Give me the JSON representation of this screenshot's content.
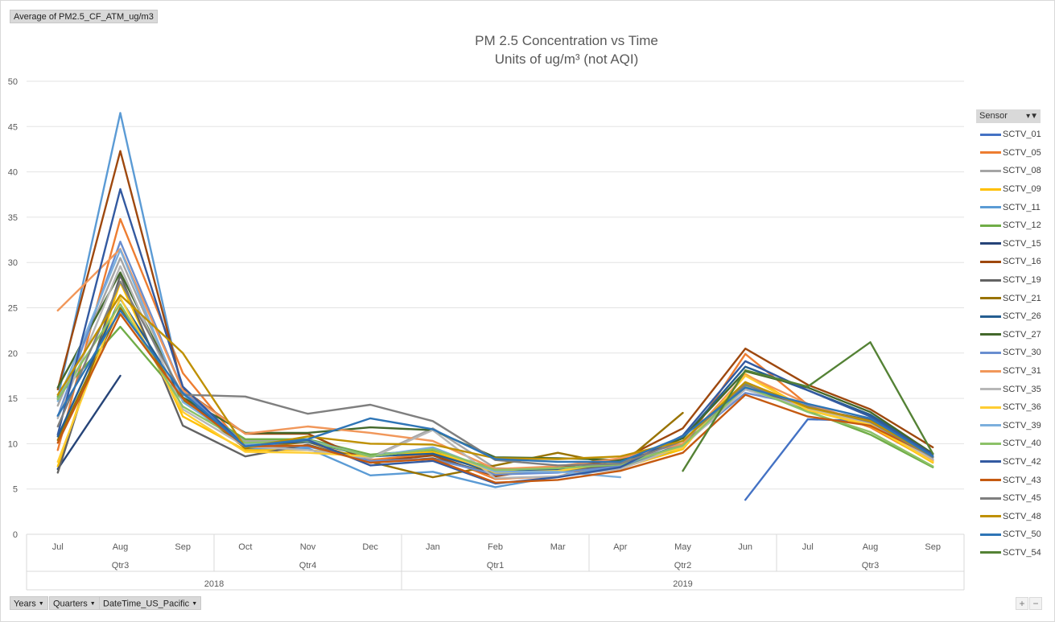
{
  "value_field": "Average of PM2.5_CF_ATM_ug/m3",
  "legend_title": "Sensor",
  "axis_fields": [
    {
      "label": "Years"
    },
    {
      "label": "Quarters"
    },
    {
      "label": "DateTime_US_Pacific"
    }
  ],
  "zoom": {
    "plus": "+",
    "minus": "−"
  },
  "chart_data": {
    "type": "line",
    "title": "PM 2.5 Concentration vs Time",
    "subtitle": "Units of ug/m³ (not AQI)",
    "xlabel": "",
    "ylabel": "",
    "ylim": [
      0,
      50
    ],
    "yticks": [
      0,
      5,
      10,
      15,
      20,
      25,
      30,
      35,
      40,
      45,
      50
    ],
    "grid": true,
    "legend_position": "right",
    "categories": [
      "Jul",
      "Aug",
      "Sep",
      "Oct",
      "Nov",
      "Dec",
      "Jan",
      "Feb",
      "Mar",
      "Apr",
      "May",
      "Jun",
      "Jul",
      "Aug",
      "Sep"
    ],
    "quarter_groups": [
      {
        "label": "Qtr3",
        "count": 3
      },
      {
        "label": "Qtr4",
        "count": 3
      },
      {
        "label": "Qtr1",
        "count": 3
      },
      {
        "label": "Qtr2",
        "count": 3
      },
      {
        "label": "Qtr3",
        "count": 3
      }
    ],
    "year_groups": [
      {
        "label": "2018",
        "count": 6
      },
      {
        "label": "2019",
        "count": 9
      }
    ],
    "series": [
      {
        "name": "SCTV_01",
        "color": "#4472c4",
        "values": [
          null,
          null,
          null,
          null,
          null,
          null,
          null,
          null,
          null,
          null,
          null,
          3.8,
          12.7,
          12.5,
          8.5
        ]
      },
      {
        "name": "SCTV_05",
        "color": "#ed7d31",
        "values": [
          9.3,
          34.8,
          17.8,
          9.4,
          9.8,
          8.2,
          8.9,
          6.1,
          6.4,
          7.8,
          9.6,
          19.9,
          14.3,
          11.8,
          8.0
        ]
      },
      {
        "name": "SCTV_08",
        "color": "#a5a5a5",
        "values": [
          14.2,
          30.5,
          14.8,
          10.3,
          10.3,
          8.5,
          11.7,
          7.3,
          7.1,
          7.9,
          9.8,
          16.2,
          14.1,
          12.2,
          8.3
        ]
      },
      {
        "name": "SCTV_09",
        "color": "#ffc000",
        "values": [
          7.5,
          27.8,
          13.0,
          9.3,
          9.3,
          8.7,
          9.1,
          7.0,
          6.9,
          7.3,
          9.4,
          17.7,
          13.7,
          12.0,
          7.9
        ]
      },
      {
        "name": "SCTV_11",
        "color": "#5b9bd5",
        "values": [
          15.0,
          46.5,
          15.5,
          9.5,
          9.5,
          6.5,
          6.9,
          5.2,
          6.4,
          7.5,
          10.0,
          16.0,
          13.8,
          12.3,
          8.2
        ]
      },
      {
        "name": "SCTV_12",
        "color": "#70ad47",
        "values": [
          15.2,
          22.9,
          14.8,
          10.5,
          10.5,
          8.8,
          9.3,
          7.2,
          7.1,
          7.4,
          9.6,
          16.6,
          13.6,
          11.0,
          7.4
        ]
      },
      {
        "name": "SCTV_15",
        "color": "#264478",
        "values": [
          7.2,
          17.5,
          null,
          null,
          null,
          null,
          null,
          null,
          null,
          null,
          null,
          null,
          null,
          null,
          null
        ]
      },
      {
        "name": "SCTV_16",
        "color": "#9e480e",
        "values": [
          16.0,
          42.3,
          16.0,
          11.1,
          11.1,
          8.0,
          8.7,
          6.4,
          7.4,
          8.2,
          11.7,
          20.5,
          16.5,
          13.8,
          9.6
        ]
      },
      {
        "name": "SCTV_19",
        "color": "#636363",
        "values": [
          6.8,
          28.6,
          12.0,
          8.6,
          9.9,
          7.9,
          8.4,
          6.7,
          7.1,
          7.6,
          9.9,
          16.2,
          14.0,
          12.6,
          8.5
        ]
      },
      {
        "name": "SCTV_21",
        "color": "#997300",
        "values": [
          10.4,
          25.0,
          14.9,
          9.5,
          10.2,
          8.0,
          6.3,
          7.6,
          9.0,
          7.6,
          13.4,
          null,
          null,
          null,
          null
        ]
      },
      {
        "name": "SCTV_26",
        "color": "#255e91",
        "values": [
          10.8,
          26.0,
          15.1,
          10.0,
          10.2,
          8.6,
          8.9,
          6.8,
          7.2,
          7.9,
          10.6,
          18.5,
          15.9,
          13.2,
          8.9
        ]
      },
      {
        "name": "SCTV_27",
        "color": "#43682b",
        "values": [
          16.2,
          28.9,
          15.1,
          11.2,
          11.2,
          11.8,
          11.5,
          8.5,
          8.4,
          8.2,
          10.6,
          18.0,
          16.2,
          13.5,
          8.9
        ]
      },
      {
        "name": "SCTV_30",
        "color": "#698ed0",
        "values": [
          13.0,
          32.3,
          15.9,
          9.9,
          9.7,
          8.1,
          8.3,
          6.6,
          6.8,
          7.5,
          9.9,
          15.6,
          14.2,
          12.1,
          8.3
        ]
      },
      {
        "name": "SCTV_31",
        "color": "#f1975a",
        "values": [
          24.7,
          31.5,
          15.9,
          11.1,
          11.9,
          11.2,
          10.3,
          7.2,
          7.5,
          8.4,
          10.0,
          17.6,
          14.4,
          12.2,
          8.1
        ]
      },
      {
        "name": "SCTV_35",
        "color": "#b7b7b7",
        "values": [
          12.8,
          29.6,
          13.8,
          9.7,
          9.3,
          8.4,
          11.5,
          6.2,
          6.4,
          7.2,
          9.7,
          16.0,
          13.9,
          12.2,
          8.3
        ]
      },
      {
        "name": "SCTV_36",
        "color": "#ffcd33",
        "values": [
          8.0,
          26.1,
          13.5,
          9.1,
          9.0,
          8.6,
          9.4,
          6.8,
          7.0,
          8.0,
          9.5,
          17.5,
          13.7,
          12.1,
          8.0
        ]
      },
      {
        "name": "SCTV_39",
        "color": "#7cafdd",
        "values": [
          14.7,
          31.4,
          14.6,
          10.0,
          10.4,
          8.6,
          9.6,
          6.9,
          6.9,
          6.3,
          null,
          null,
          null,
          null,
          null
        ]
      },
      {
        "name": "SCTV_40",
        "color": "#8cc168",
        "values": [
          14.9,
          25.4,
          14.1,
          10.1,
          10.3,
          8.6,
          9.4,
          7.1,
          7.3,
          7.7,
          9.8,
          16.3,
          13.5,
          11.3,
          7.5
        ]
      },
      {
        "name": "SCTV_42",
        "color": "#335aa1",
        "values": [
          11.0,
          38.1,
          16.3,
          9.7,
          10.4,
          7.6,
          8.1,
          5.6,
          6.3,
          7.4,
          10.9,
          19.1,
          15.9,
          13.0,
          8.8
        ]
      },
      {
        "name": "SCTV_43",
        "color": "#c55a11",
        "values": [
          10.1,
          24.3,
          15.0,
          9.7,
          9.8,
          7.9,
          8.3,
          5.7,
          6.0,
          7.0,
          9.0,
          15.4,
          13.0,
          12.0,
          8.6
        ]
      },
      {
        "name": "SCTV_45",
        "color": "#7f7f7f",
        "values": [
          11.9,
          27.9,
          15.4,
          15.2,
          13.3,
          14.3,
          12.5,
          8.2,
          7.6,
          7.8,
          10.3,
          16.5,
          14.1,
          12.4,
          8.5
        ]
      },
      {
        "name": "SCTV_48",
        "color": "#bf9000",
        "values": [
          15.4,
          26.4,
          20.0,
          9.6,
          10.8,
          10.0,
          9.9,
          8.4,
          8.3,
          8.6,
          10.3,
          16.8,
          14.0,
          12.5,
          8.6
        ]
      },
      {
        "name": "SCTV_50",
        "color": "#2e75b6",
        "values": [
          13.1,
          24.7,
          15.6,
          9.7,
          10.5,
          12.8,
          11.6,
          8.3,
          8.0,
          8.0,
          10.8,
          16.2,
          14.4,
          12.8,
          8.6
        ]
      },
      {
        "name": "SCTV_54",
        "color": "#548235",
        "values": [
          null,
          null,
          null,
          null,
          null,
          null,
          null,
          null,
          null,
          null,
          7.0,
          18.1,
          16.3,
          21.2,
          8.9
        ]
      }
    ]
  }
}
